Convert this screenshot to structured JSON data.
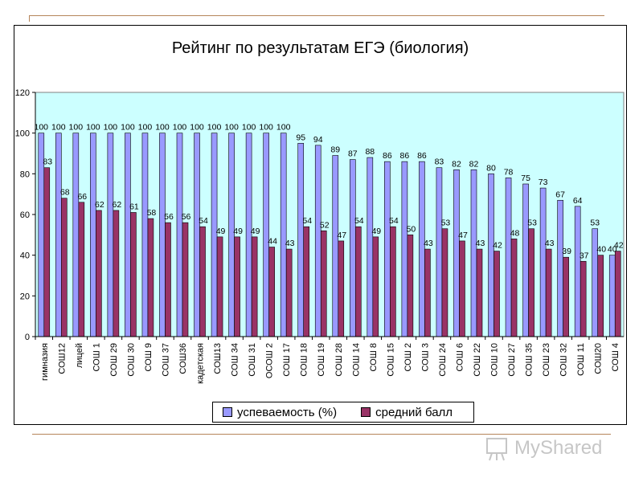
{
  "colors": {
    "plot_bg": "#ccffff",
    "series1": "#9999ff",
    "series2": "#993366",
    "deco": "#b5855a"
  },
  "watermark": {
    "text": "MyShared"
  },
  "chart_data": {
    "type": "bar",
    "title": "Рейтинг по результатам ЕГЭ (биология)",
    "ylim": [
      0,
      120
    ],
    "yticks": [
      0,
      20,
      40,
      60,
      80,
      100,
      120
    ],
    "grid": false,
    "legend_position": "bottom",
    "categories": [
      "гимназия",
      "СОШ12",
      "лицей",
      "СОШ 1",
      "СОШ 29",
      "СОШ 30",
      "СОШ 9",
      "СОШ 37",
      "СОШ36",
      "кадетская",
      "СОШ13",
      "СОШ 34",
      "СОШ 31",
      "ОСОШ 2",
      "СОШ 17",
      "СОШ 18",
      "СОШ 19",
      "СОШ 28",
      "СОШ 14",
      "СОШ 8",
      "СОШ 15",
      "СОШ 2",
      "СОШ 3",
      "СОШ 24",
      "СОШ 6",
      "СОШ 22",
      "СОШ 10",
      "СОШ 27",
      "СОШ 35",
      "СОШ 23",
      "СОШ 32",
      "СОШ 11",
      "СОШ20",
      "СОШ 4"
    ],
    "series": [
      {
        "name": "успеваемость (%)",
        "values": [
          100,
          100,
          100,
          100,
          100,
          100,
          100,
          100,
          100,
          100,
          100,
          100,
          100,
          100,
          100,
          95,
          94,
          89,
          87,
          88,
          86,
          86,
          86,
          83,
          82,
          82,
          80,
          78,
          75,
          73,
          67,
          64,
          53,
          40
        ]
      },
      {
        "name": "средний балл",
        "values": [
          83,
          68,
          66,
          62,
          62,
          61,
          58,
          56,
          56,
          54,
          49,
          49,
          49,
          44,
          43,
          54,
          52,
          47,
          54,
          49,
          54,
          50,
          43,
          53,
          47,
          43,
          42,
          48,
          53,
          43,
          39,
          37,
          40,
          42
        ]
      }
    ]
  }
}
